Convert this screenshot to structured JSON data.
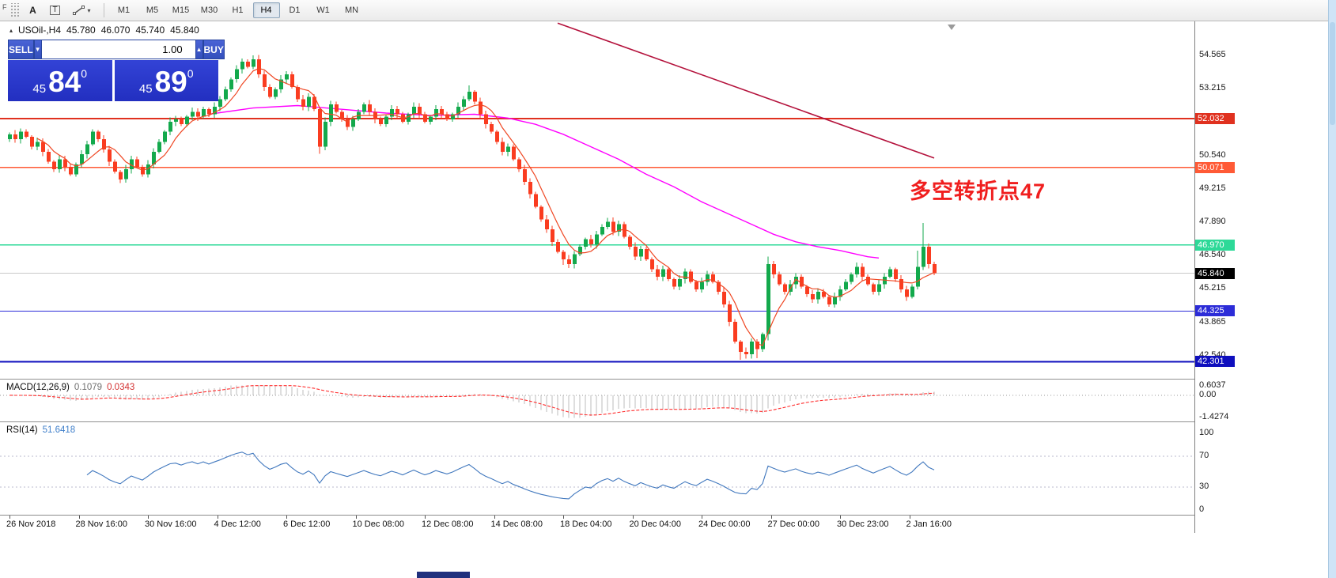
{
  "ui": {
    "toolbar": {
      "handle_label": "F",
      "text_tool": "A",
      "textbox_tool": "T",
      "caret": "▾",
      "timeframes": [
        "M1",
        "M5",
        "M15",
        "M30",
        "H1",
        "H4",
        "D1",
        "W1",
        "MN"
      ],
      "active_timeframe": "H4"
    },
    "symbol_row": {
      "symbol": "USOil-,H4",
      "open": "45.780",
      "high": "46.070",
      "low": "45.740",
      "close": "45.840"
    },
    "trade_panel": {
      "sell_label": "SELL",
      "buy_label": "BUY",
      "volume_value": "1.00",
      "spin_down": "▼",
      "spin_up": "▲",
      "sell_small": "45",
      "sell_big": "84",
      "sell_sup": "0",
      "buy_small": "45",
      "buy_big": "89",
      "buy_sup": "0"
    }
  },
  "chart_data": {
    "type": "candlestick",
    "symbol": "USOil-",
    "timeframe": "H4",
    "ohlc_current": {
      "open": 45.78,
      "high": 46.07,
      "low": 45.74,
      "close": 45.84
    },
    "price_axis": {
      "labels": [
        54.565,
        53.215,
        50.54,
        49.215,
        47.89,
        46.54,
        45.215,
        43.865,
        42.54
      ],
      "min": 41.62,
      "max": 55.95
    },
    "time_axis": [
      "26 Nov 2018",
      "28 Nov 16:00",
      "30 Nov 16:00",
      "4 Dec 12:00",
      "6 Dec 12:00",
      "10 Dec 08:00",
      "12 Dec 08:00",
      "14 Dec 08:00",
      "18 Dec 04:00",
      "20 Dec 04:00",
      "24 Dec 00:00",
      "27 Dec 00:00",
      "30 Dec 23:00",
      "2 Jan 16:00"
    ],
    "first_open": 51.2,
    "closes": [
      51.4,
      51.2,
      51.5,
      51.3,
      50.9,
      51.1,
      50.7,
      50.3,
      50.0,
      50.4,
      50.1,
      49.8,
      50.2,
      50.6,
      51.0,
      51.5,
      51.2,
      50.8,
      50.3,
      49.9,
      49.6,
      50.0,
      50.4,
      50.1,
      49.8,
      50.2,
      50.7,
      51.1,
      51.5,
      51.9,
      52.0,
      51.8,
      52.1,
      52.3,
      52.1,
      52.4,
      52.2,
      52.5,
      52.8,
      53.2,
      53.6,
      54.0,
      54.3,
      54.1,
      54.4,
      53.8,
      53.3,
      52.9,
      53.2,
      53.6,
      53.8,
      53.3,
      52.8,
      52.5,
      52.9,
      52.4,
      50.9,
      51.9,
      52.6,
      52.3,
      52.0,
      51.7,
      52.0,
      52.3,
      52.6,
      52.3,
      52.0,
      51.8,
      52.1,
      52.4,
      52.2,
      51.9,
      52.2,
      52.5,
      52.2,
      51.9,
      52.1,
      52.4,
      52.2,
      52.0,
      52.2,
      52.5,
      52.8,
      53.1,
      52.7,
      52.2,
      51.8,
      51.5,
      51.1,
      50.7,
      50.9,
      50.4,
      50.0,
      49.5,
      49.0,
      48.5,
      48.0,
      47.6,
      47.1,
      46.7,
      46.4,
      46.2,
      46.6,
      46.9,
      47.2,
      47.0,
      47.4,
      47.7,
      47.9,
      47.5,
      47.8,
      47.3,
      46.9,
      46.5,
      46.8,
      46.4,
      46.0,
      45.7,
      46.0,
      45.6,
      45.3,
      45.6,
      45.9,
      45.5,
      45.2,
      45.5,
      45.8,
      45.5,
      45.1,
      44.6,
      43.9,
      43.1,
      42.7,
      42.6,
      43.1,
      42.8,
      43.4,
      46.2,
      45.8,
      45.4,
      45.1,
      45.4,
      45.7,
      45.3,
      45.0,
      44.8,
      45.1,
      44.9,
      44.6,
      44.9,
      45.2,
      45.5,
      45.8,
      46.1,
      45.7,
      45.4,
      45.1,
      45.4,
      45.7,
      46.0,
      45.6,
      45.2,
      44.9,
      45.3,
      46.1,
      46.9,
      46.2,
      45.84
    ],
    "wick_overrides": {
      "20": {
        "l": 49.45
      },
      "44": {
        "h": 54.56
      },
      "50": {
        "h": 53.92
      },
      "56": {
        "l": 50.62
      },
      "83": {
        "h": 53.35
      },
      "100": {
        "l": 46.18
      },
      "101": {
        "l": 46.05
      },
      "108": {
        "h": 48.05
      },
      "110": {
        "h": 47.95
      },
      "132": {
        "l": 42.38
      },
      "133": {
        "l": 42.42
      },
      "135": {
        "l": 42.45
      },
      "137": {
        "h": 46.5,
        "l": 43.15
      },
      "164": {
        "h": 46.75
      },
      "165": {
        "h": 47.85
      }
    },
    "colors": {
      "up": "#13a94c",
      "down": "#fa3c20",
      "ma_fast": "#ef4723",
      "ma_slow": "#ff00ff",
      "trend": "#b4123c",
      "macd_hist": "#bdbdbd",
      "macd_signal": "#ff2d2d",
      "rsi": "#4178be"
    },
    "ma_fast_period": 6,
    "ma_slow_points": [
      [
        36,
        52.2
      ],
      [
        44,
        52.45
      ],
      [
        52,
        52.55
      ],
      [
        60,
        52.4
      ],
      [
        68,
        52.25
      ],
      [
        76,
        52.15
      ],
      [
        84,
        52.2
      ],
      [
        90,
        52.05
      ],
      [
        95,
        51.8
      ],
      [
        100,
        51.4
      ],
      [
        105,
        50.9
      ],
      [
        110,
        50.4
      ],
      [
        115,
        49.8
      ],
      [
        120,
        49.3
      ],
      [
        125,
        48.7
      ],
      [
        130,
        48.2
      ],
      [
        134,
        47.8
      ],
      [
        138,
        47.4
      ],
      [
        142,
        47.1
      ],
      [
        146,
        46.9
      ],
      [
        150,
        46.75
      ],
      [
        153,
        46.6
      ],
      [
        155,
        46.5
      ],
      [
        157,
        46.45
      ]
    ],
    "trend_line_points": [
      [
        99,
        55.85
      ],
      [
        167,
        50.45
      ]
    ],
    "h_lines": [
      {
        "price": 52.032,
        "color": "#e0311f",
        "width": 2
      },
      {
        "price": 50.071,
        "color": "#ff5a36",
        "width": 1.3
      },
      {
        "price": 46.97,
        "color": "#2dd998",
        "width": 1.6
      },
      {
        "price": 44.325,
        "color": "#2c2cd8",
        "width": 1.4
      },
      {
        "price": 42.301,
        "color": "#0f0fbe",
        "width": 2.2
      }
    ],
    "current_price": {
      "value": 45.84,
      "color": "#000000"
    },
    "macd": {
      "label": "MACD(12,26,9)",
      "value_main": "0.1079",
      "value_signal": "0.0343",
      "scale": [
        {
          "value": 0.6037,
          "text": "0.6037"
        },
        {
          "value": 0,
          "text": "0.00"
        },
        {
          "value": -1.4274,
          "text": "-1.4274"
        }
      ],
      "params": [
        12,
        26,
        9
      ]
    },
    "rsi": {
      "label": "RSI(14)",
      "value": "51.6418",
      "scale": [
        {
          "value": 100,
          "text": "100"
        },
        {
          "value": 70,
          "text": "70"
        },
        {
          "value": 30,
          "text": "30"
        },
        {
          "value": 0,
          "text": "0"
        }
      ],
      "levels": [
        70,
        30
      ],
      "period": 14
    },
    "annotation": {
      "text": "多空转折点47",
      "color": "#f01e1e",
      "price": 49.3
    }
  }
}
